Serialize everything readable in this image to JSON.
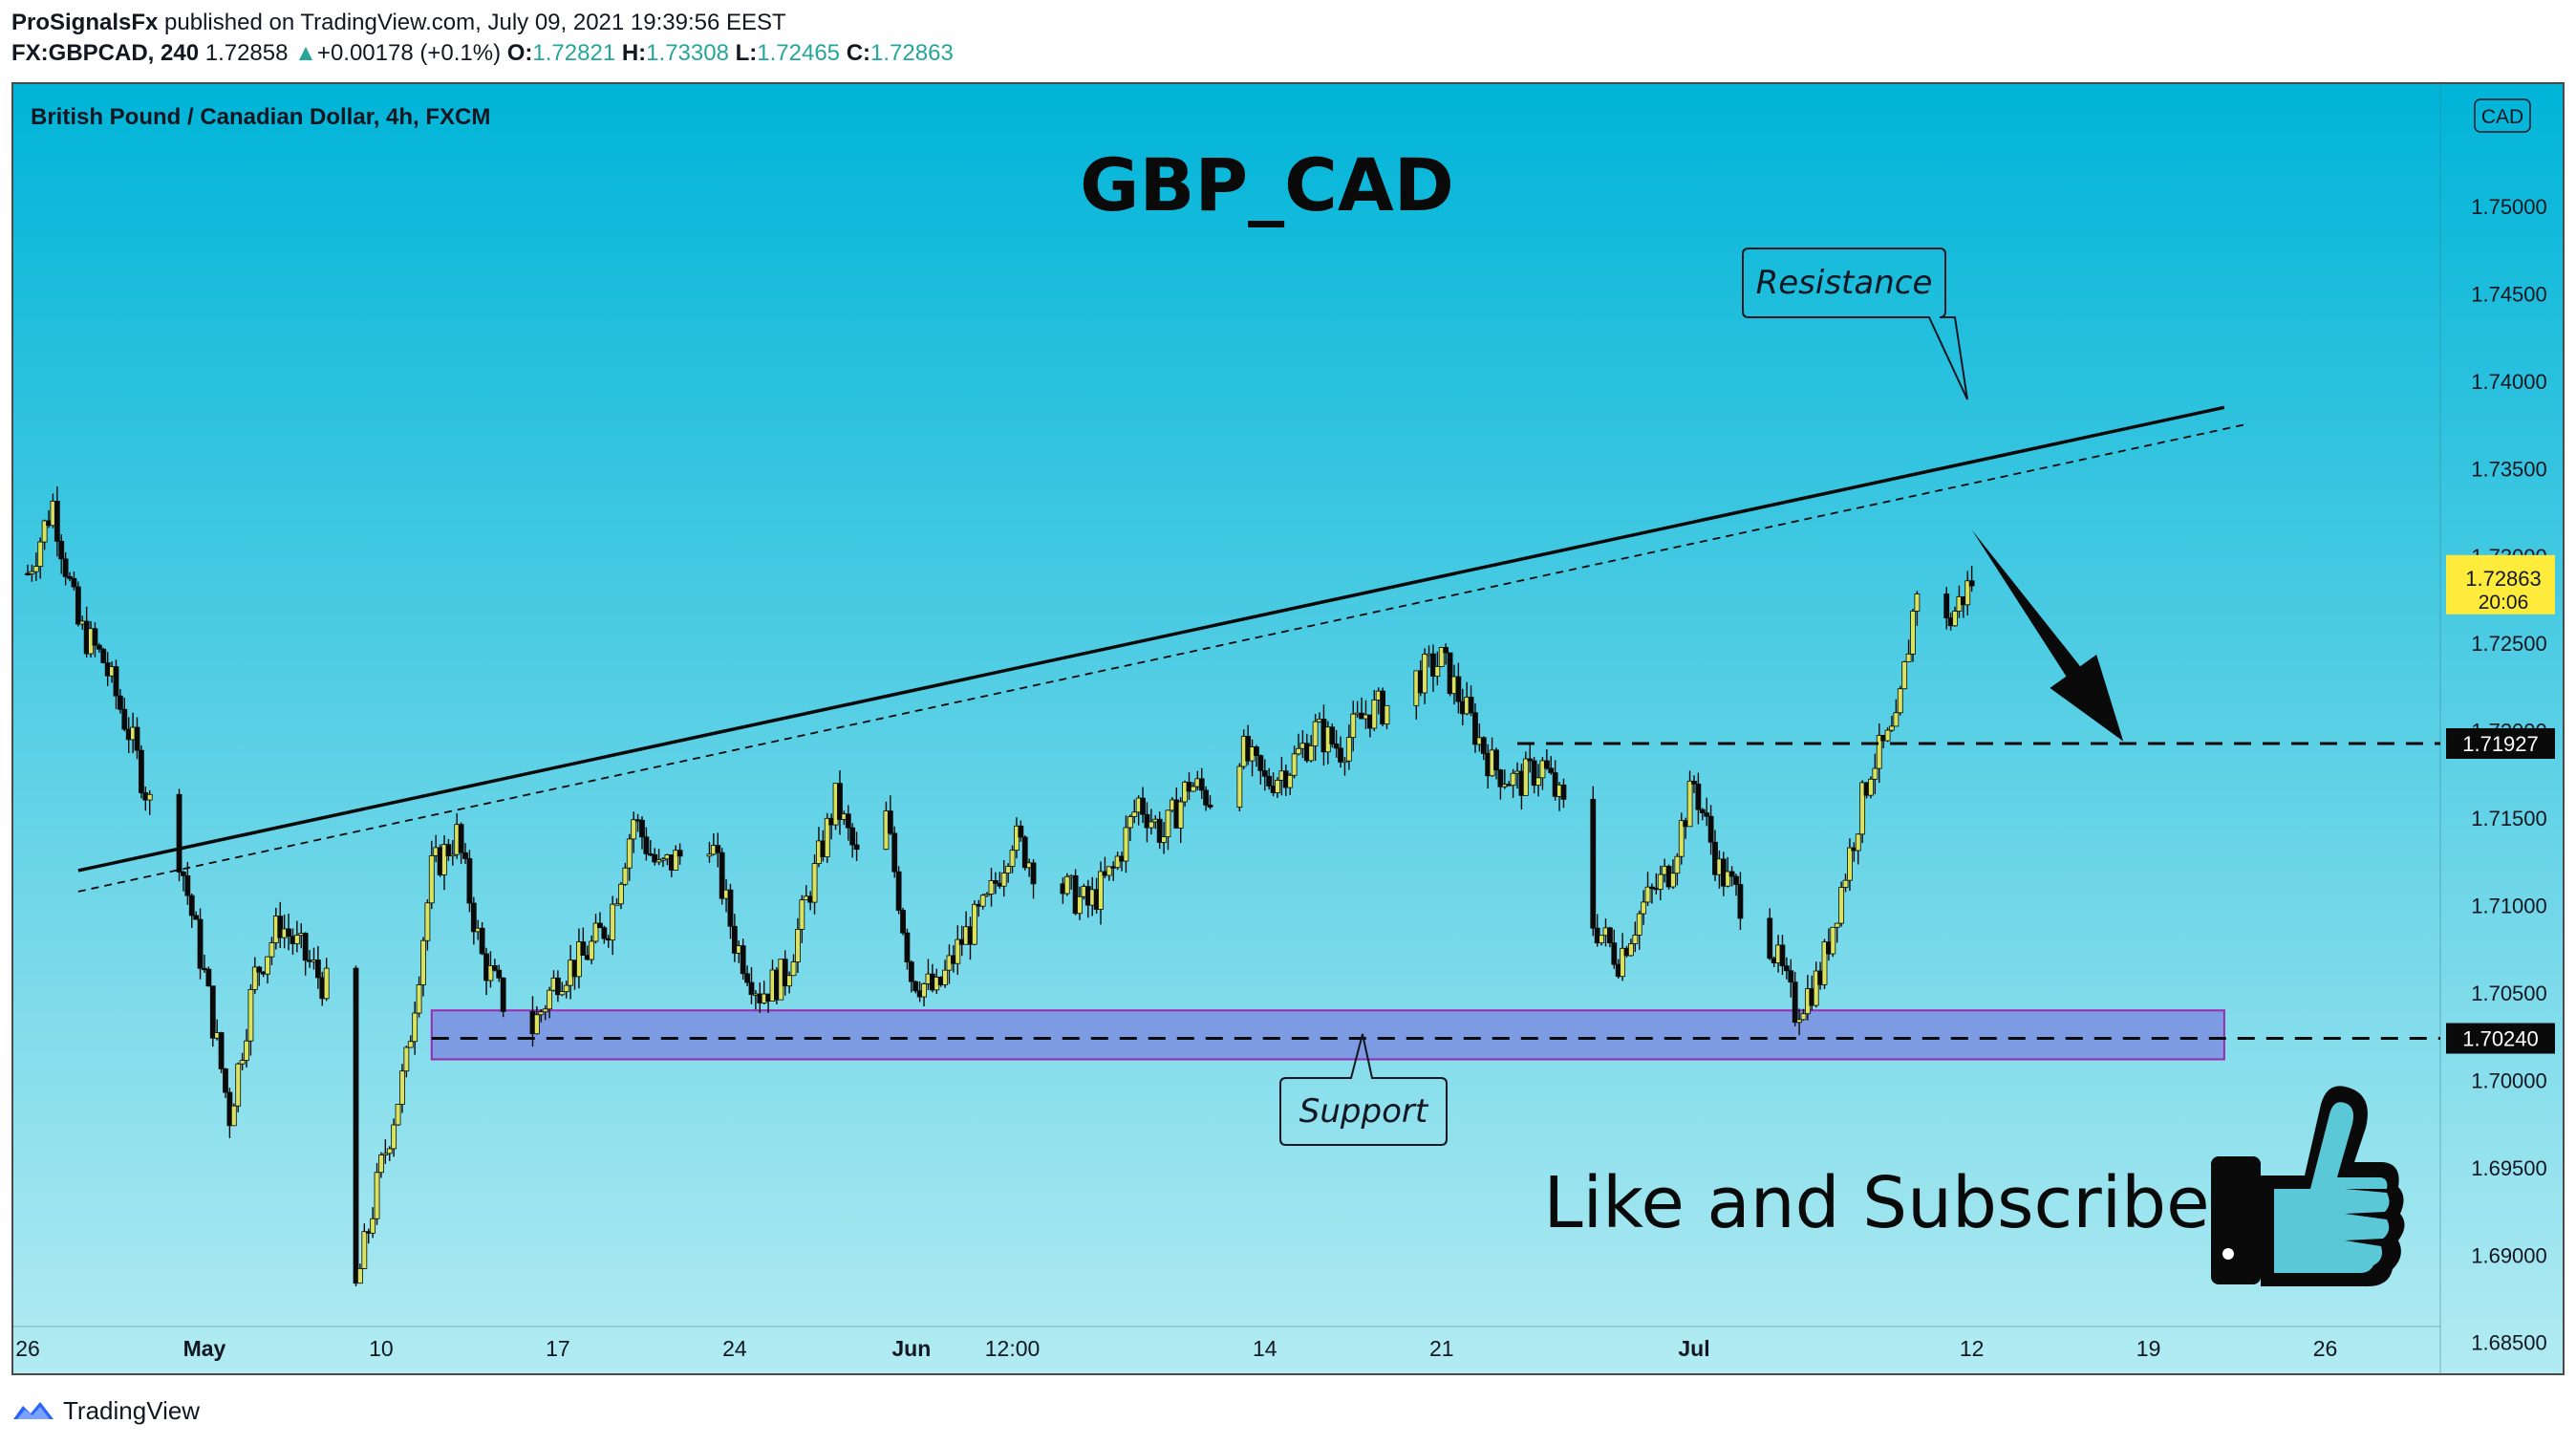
{
  "header": {
    "publisher": "ProSignalsFx",
    "published_text": "published on TradingView.com, July 09, 2021 19:39:56 EEST",
    "symbol": "FX:GBPCAD, 240",
    "last": "1.72858",
    "change": "+0.00178 (+0.1%)",
    "open_label": "O:",
    "open": "1.72821",
    "high_label": "H:",
    "high": "1.73308",
    "low_label": "L:",
    "low": "1.72465",
    "close_label": "C:",
    "close": "1.72863"
  },
  "chart": {
    "instrument_title": "British Pound / Canadian Dollar, 4h, FXCM",
    "big_title": "GBP_CAD",
    "currency_badge": "CAD",
    "annotations": {
      "resistance": "Resistance",
      "support": "Support",
      "cta": "Like and Subscribe"
    },
    "price_labels": {
      "current_price": "1.72863",
      "countdown": "20:06",
      "level_mid": "1.71927",
      "level_low": "1.70240"
    }
  },
  "footer": {
    "brand": "TradingView"
  },
  "colors": {
    "bg_top": "#00b4d8",
    "bg_bottom": "#b2ebf2",
    "candle_up": "#d9e35c",
    "candle_down": "#0a0a0a",
    "support_zone": "#7b8fe0",
    "support_zone_border": "#9c27b0",
    "current_price_tag": "#ffeb3b",
    "green_change": "#26a69a"
  },
  "chart_data": {
    "type": "candlestick",
    "ylim": [
      1.684,
      1.7535
    ],
    "yticks": [
      "1.75000",
      "1.74500",
      "1.74000",
      "1.73500",
      "1.73000",
      "1.72500",
      "1.72000",
      "1.71500",
      "1.71000",
      "1.70500",
      "1.70000",
      "1.69500",
      "1.69000",
      "1.68500"
    ],
    "x_range": [
      "2021-04-26",
      "2021-07-27"
    ],
    "xticks": [
      {
        "label": "26",
        "date": "2021-04-26"
      },
      {
        "label": "May",
        "date": "2021-05-03",
        "bold": true
      },
      {
        "label": "10",
        "date": "2021-05-10"
      },
      {
        "label": "17",
        "date": "2021-05-17"
      },
      {
        "label": "24",
        "date": "2021-05-24"
      },
      {
        "label": "Jun",
        "date": "2021-05-31",
        "bold": true
      },
      {
        "label": "12:00",
        "date": "2021-06-04"
      },
      {
        "label": "14",
        "date": "2021-06-14"
      },
      {
        "label": "21",
        "date": "2021-06-21"
      },
      {
        "label": "Jul",
        "date": "2021-07-01",
        "bold": true
      },
      {
        "label": "12",
        "date": "2021-07-12"
      },
      {
        "label": "19",
        "date": "2021-07-19"
      },
      {
        "label": "26",
        "date": "2021-07-26"
      }
    ],
    "path_keypoints": [
      [
        "2021-04-26",
        1.729
      ],
      [
        "2021-04-27",
        1.733
      ],
      [
        "2021-04-28",
        1.726
      ],
      [
        "2021-04-29",
        1.724
      ],
      [
        "2021-04-30",
        1.72
      ],
      [
        "2021-05-01",
        1.715
      ],
      [
        "2021-05-02",
        1.713
      ],
      [
        "2021-05-03",
        1.706
      ],
      [
        "2021-05-04",
        1.698
      ],
      [
        "2021-05-05",
        1.706
      ],
      [
        "2021-05-06",
        1.709
      ],
      [
        "2021-05-07",
        1.707
      ],
      [
        "2021-05-08",
        1.705
      ],
      [
        "2021-05-09",
        1.688
      ],
      [
        "2021-05-10",
        1.695
      ],
      [
        "2021-05-11",
        1.701
      ],
      [
        "2021-05-12",
        1.712
      ],
      [
        "2021-05-13",
        1.714
      ],
      [
        "2021-05-14",
        1.707
      ],
      [
        "2021-05-15",
        1.704
      ],
      [
        "2021-05-16",
        1.703
      ],
      [
        "2021-05-17",
        1.706
      ],
      [
        "2021-05-18",
        1.707
      ],
      [
        "2021-05-19",
        1.709
      ],
      [
        "2021-05-20",
        1.715
      ],
      [
        "2021-05-21",
        1.712
      ],
      [
        "2021-05-22",
        1.713
      ],
      [
        "2021-05-23",
        1.714
      ],
      [
        "2021-05-24",
        1.708
      ],
      [
        "2021-05-25",
        1.705
      ],
      [
        "2021-05-26",
        1.706
      ],
      [
        "2021-05-27",
        1.711
      ],
      [
        "2021-05-28",
        1.716
      ],
      [
        "2021-05-29",
        1.712
      ],
      [
        "2021-05-30",
        1.715
      ],
      [
        "2021-05-31",
        1.706
      ],
      [
        "2021-06-01",
        1.705
      ],
      [
        "2021-06-02",
        1.708
      ],
      [
        "2021-06-03",
        1.71
      ],
      [
        "2021-06-04",
        1.714
      ],
      [
        "2021-06-05",
        1.712
      ],
      [
        "2021-06-06",
        1.711
      ],
      [
        "2021-06-07",
        1.71
      ],
      [
        "2021-06-08",
        1.712
      ],
      [
        "2021-06-09",
        1.716
      ],
      [
        "2021-06-10",
        1.714
      ],
      [
        "2021-06-11",
        1.717
      ],
      [
        "2021-06-12",
        1.716
      ],
      [
        "2021-06-13",
        1.719
      ],
      [
        "2021-06-14",
        1.717
      ],
      [
        "2021-06-15",
        1.718
      ],
      [
        "2021-06-16",
        1.72
      ],
      [
        "2021-06-17",
        1.719
      ],
      [
        "2021-06-18",
        1.721
      ],
      [
        "2021-06-19",
        1.7215
      ],
      [
        "2021-06-20",
        1.723
      ],
      [
        "2021-06-21",
        1.724
      ],
      [
        "2021-06-22",
        1.721
      ],
      [
        "2021-06-23",
        1.718
      ],
      [
        "2021-06-24",
        1.717
      ],
      [
        "2021-06-25",
        1.718
      ],
      [
        "2021-06-26",
        1.715
      ],
      [
        "2021-06-27",
        1.709
      ],
      [
        "2021-06-28",
        1.707
      ],
      [
        "2021-06-29",
        1.71
      ],
      [
        "2021-06-30",
        1.712
      ],
      [
        "2021-07-01",
        1.717
      ],
      [
        "2021-07-02",
        1.712
      ],
      [
        "2021-07-03",
        1.71
      ],
      [
        "2021-07-04",
        1.708
      ],
      [
        "2021-07-05",
        1.704
      ],
      [
        "2021-07-06",
        1.706
      ],
      [
        "2021-07-07",
        1.712
      ],
      [
        "2021-07-08",
        1.718
      ],
      [
        "2021-07-09",
        1.72
      ],
      [
        "2021-07-10",
        1.73
      ],
      [
        "2021-07-11",
        1.726
      ],
      [
        "2021-07-12",
        1.7286
      ]
    ],
    "resistance_line": {
      "from": [
        "2021-04-28",
        1.712
      ],
      "to": [
        "2021-07-22",
        1.7385
      ]
    },
    "resistance_line_dashed": {
      "from": [
        "2021-04-28",
        1.7108
      ],
      "to": [
        "2021-07-22",
        1.7375
      ]
    },
    "support_zone": {
      "from": "2021-05-12",
      "to": "2021-07-22",
      "low": 1.7012,
      "high": 1.704
    },
    "levels": [
      {
        "price": 1.71927,
        "from": "2021-06-24"
      },
      {
        "price": 1.7024,
        "from": "2021-05-12"
      }
    ],
    "projection_arrow": {
      "from": [
        "2021-07-12",
        1.7315
      ],
      "to": [
        "2021-07-18",
        1.7194
      ]
    }
  }
}
